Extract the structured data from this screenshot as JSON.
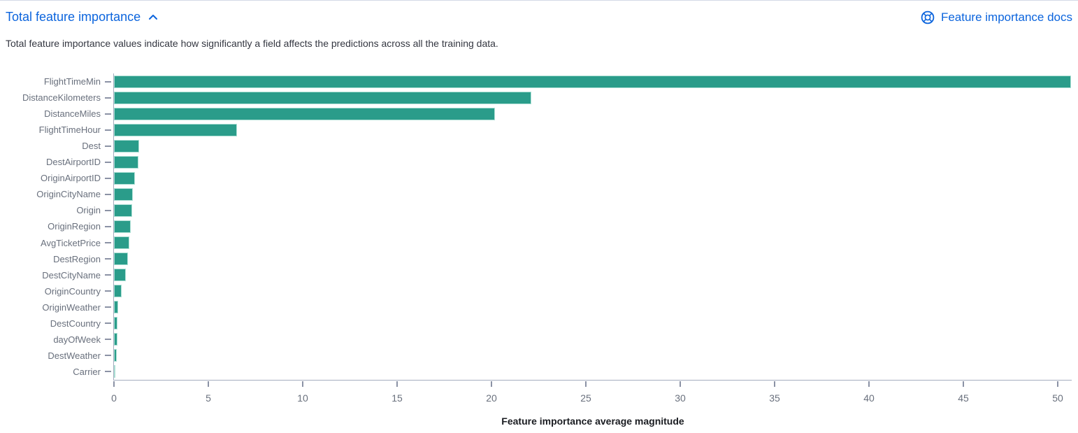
{
  "header": {
    "title": "Total feature importance",
    "docs_link_label": "Feature importance docs"
  },
  "description": "Total feature importance values indicate how significantly a field affects the predictions across all the training data.",
  "colors": {
    "link_blue": "#0b64dd",
    "bar_fill": "#2a9c8a",
    "bar_border": "#abdfd4",
    "axis_line": "#a5adbf",
    "tick_mark": "#8b92a5",
    "axis_text": "#69707d",
    "description_text": "#343741",
    "axis_title_text": "#1a1c21"
  },
  "chart_data": {
    "type": "bar",
    "orientation": "horizontal",
    "title": "",
    "xlabel": "Feature importance average magnitude",
    "ylabel": "",
    "categories": [
      "FlightTimeMin",
      "DistanceKilometers",
      "DistanceMiles",
      "FlightTimeHour",
      "Dest",
      "DestAirportID",
      "OriginAirportID",
      "OriginCityName",
      "Origin",
      "OriginRegion",
      "AvgTicketPrice",
      "DestRegion",
      "DestCityName",
      "OriginCountry",
      "OriginWeather",
      "DestCountry",
      "dayOfWeek",
      "DestWeather",
      "Carrier"
    ],
    "values": [
      50.7,
      22.1,
      20.2,
      6.5,
      1.35,
      1.3,
      1.1,
      1.0,
      0.95,
      0.88,
      0.82,
      0.74,
      0.62,
      0.4,
      0.22,
      0.2,
      0.19,
      0.16,
      0.05
    ],
    "xlim": [
      0,
      50.74
    ],
    "xticks": [
      0,
      5,
      10,
      15,
      20,
      25,
      30,
      35,
      40,
      45,
      50
    ],
    "grid": false,
    "legend": false
  }
}
